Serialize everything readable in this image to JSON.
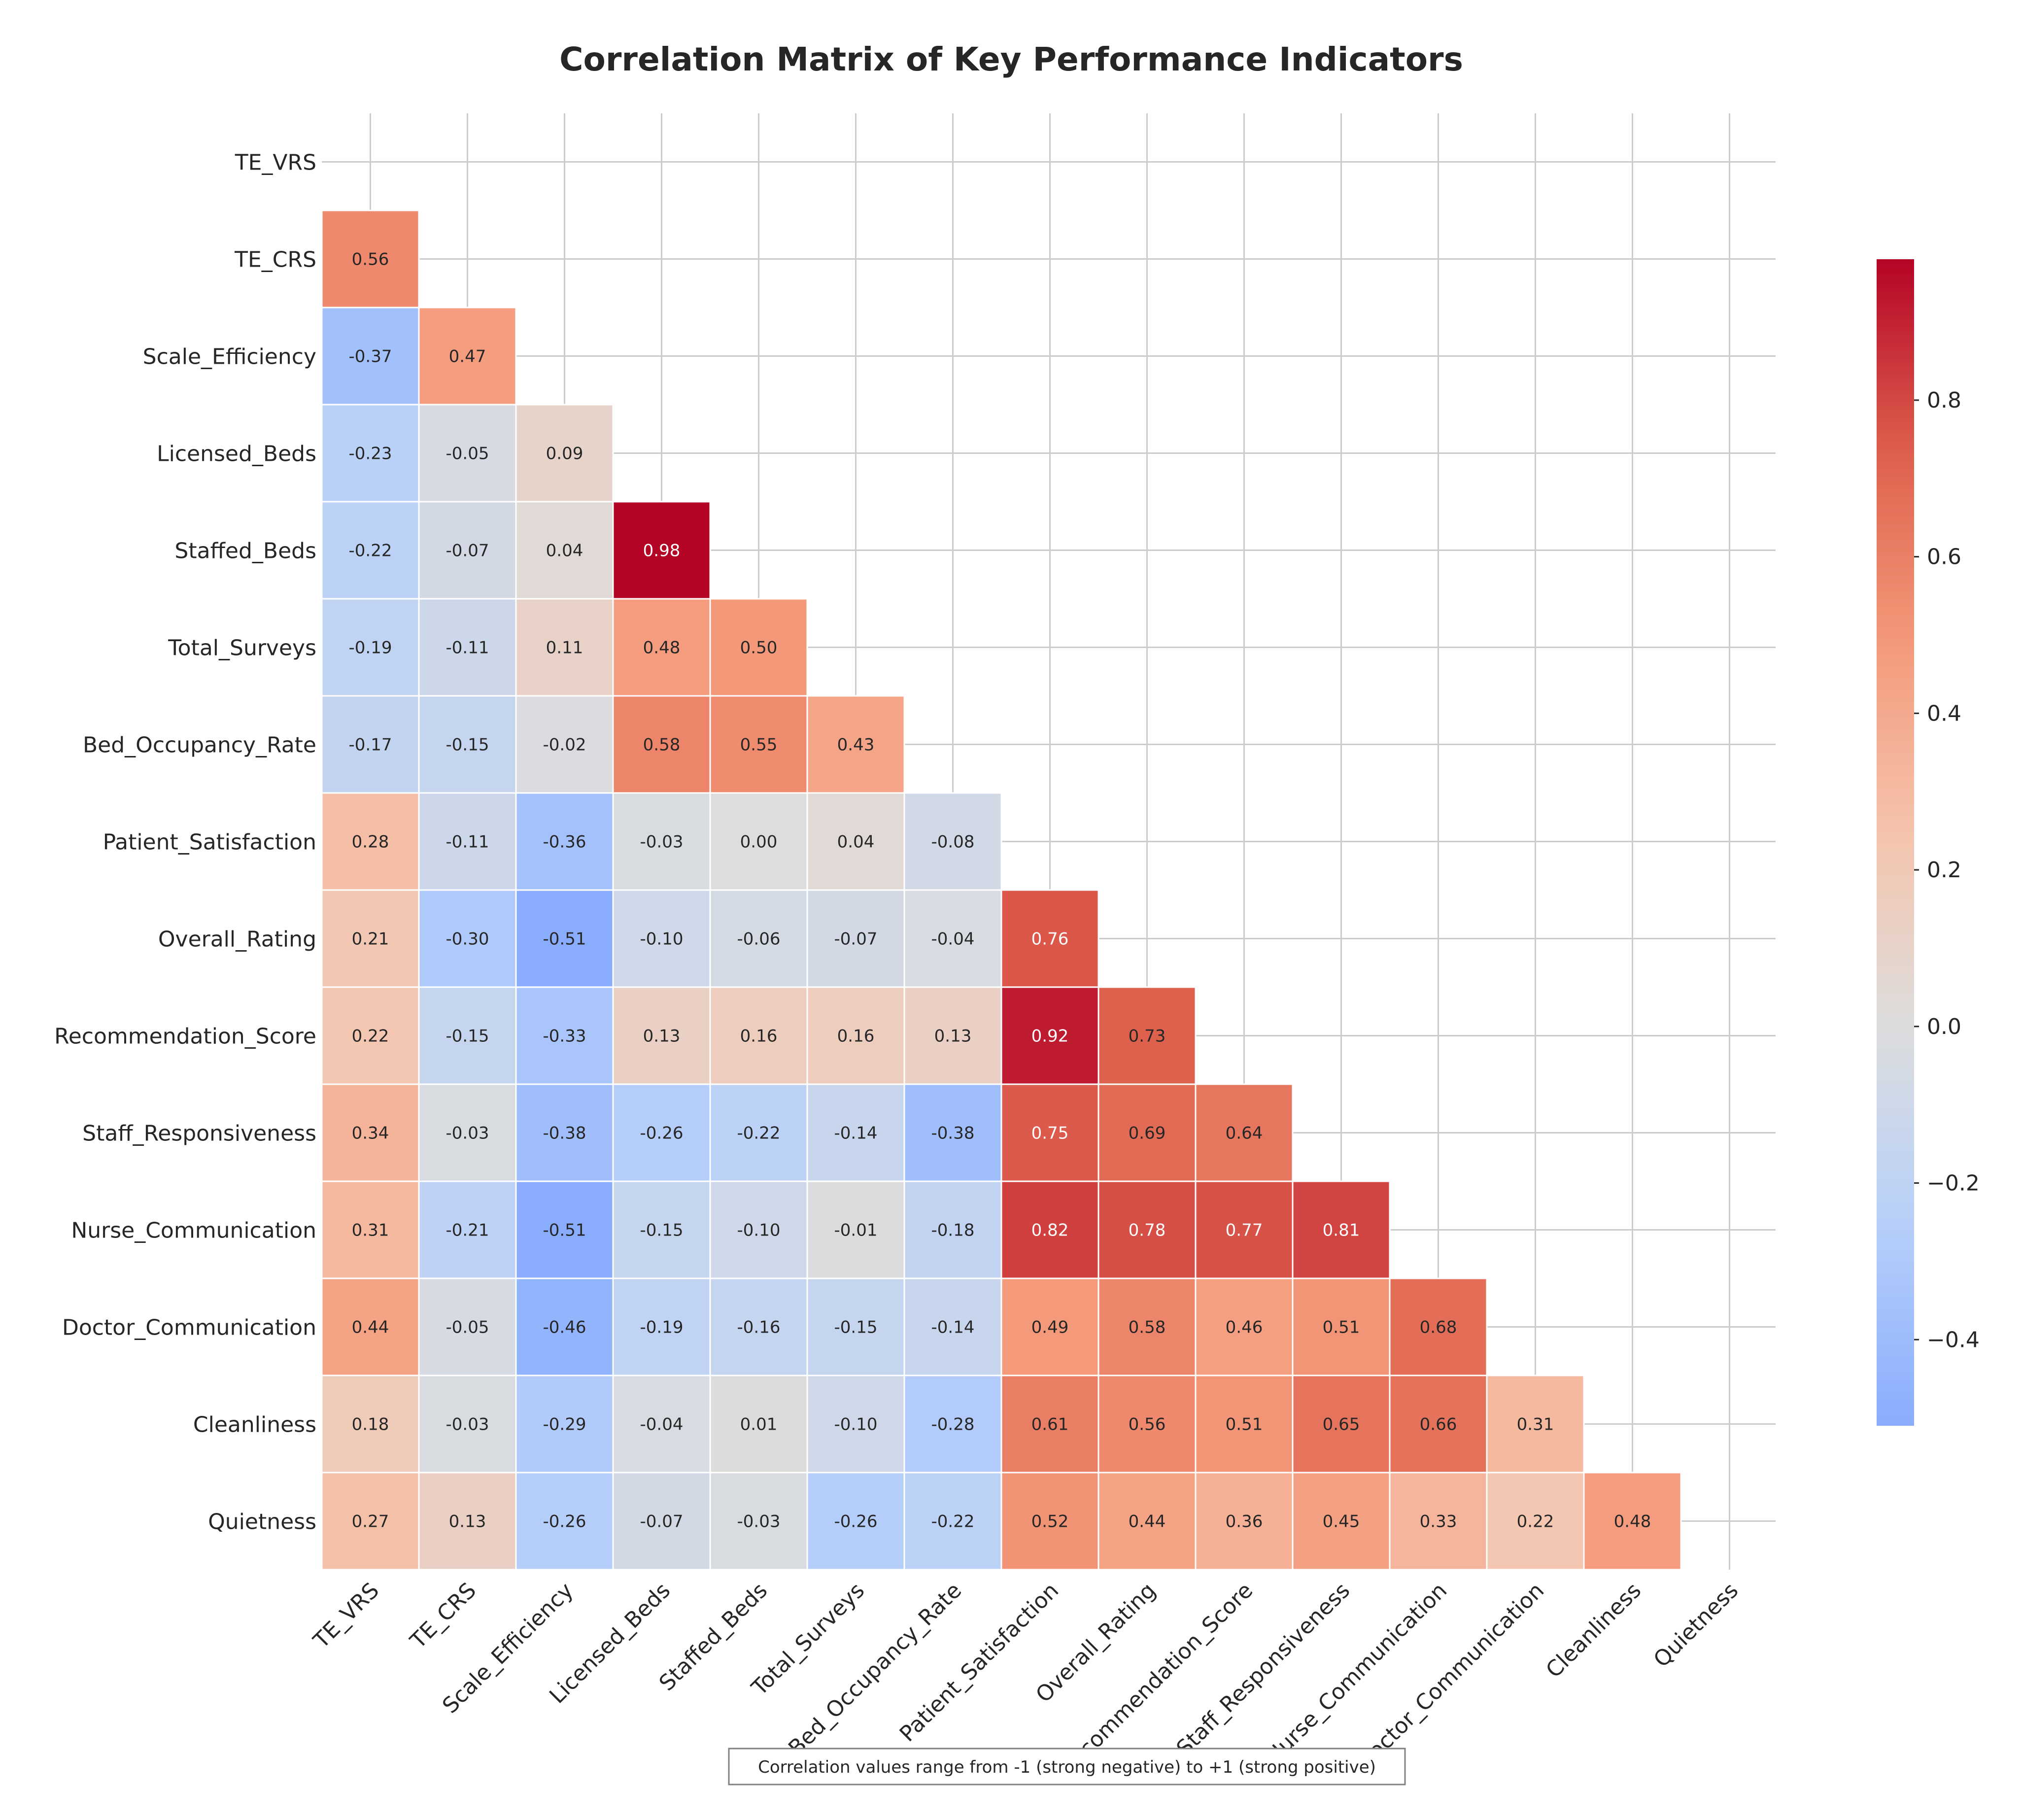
{
  "chart_data": {
    "type": "heatmap",
    "title": "Correlation Matrix of Key Performance Indicators",
    "variables": [
      "TE_VRS",
      "TE_CRS",
      "Scale_Efficiency",
      "Licensed_Beds",
      "Staffed_Beds",
      "Total_Surveys",
      "Bed_Occupancy_Rate",
      "Patient_Satisfaction",
      "Overall_Rating",
      "Recommendation_Score",
      "Staff_Responsiveness",
      "Nurse_Communication",
      "Doctor_Communication",
      "Cleanliness",
      "Quietness"
    ],
    "lower_triangle": [
      [],
      [
        0.56
      ],
      [
        -0.37,
        0.47
      ],
      [
        -0.23,
        -0.05,
        0.09
      ],
      [
        -0.22,
        -0.07,
        0.04,
        0.98
      ],
      [
        -0.19,
        -0.11,
        0.11,
        0.48,
        0.5
      ],
      [
        -0.17,
        -0.15,
        -0.02,
        0.58,
        0.55,
        0.43
      ],
      [
        0.28,
        -0.11,
        -0.36,
        -0.03,
        -0.0,
        0.04,
        -0.08
      ],
      [
        0.21,
        -0.3,
        -0.51,
        -0.1,
        -0.06,
        -0.07,
        -0.04,
        0.76
      ],
      [
        0.22,
        -0.15,
        -0.33,
        0.13,
        0.16,
        0.16,
        0.13,
        0.92,
        0.73
      ],
      [
        0.34,
        -0.03,
        -0.38,
        -0.26,
        -0.22,
        -0.14,
        -0.38,
        0.75,
        0.69,
        0.64
      ],
      [
        0.31,
        -0.21,
        -0.51,
        -0.15,
        -0.1,
        -0.01,
        -0.18,
        0.82,
        0.78,
        0.77,
        0.81
      ],
      [
        0.44,
        -0.05,
        -0.46,
        -0.19,
        -0.16,
        -0.15,
        -0.14,
        0.49,
        0.58,
        0.46,
        0.51,
        0.68
      ],
      [
        0.18,
        -0.03,
        -0.29,
        -0.04,
        0.01,
        -0.1,
        -0.28,
        0.61,
        0.56,
        0.51,
        0.65,
        0.66,
        0.31
      ],
      [
        0.27,
        0.13,
        -0.26,
        -0.07,
        -0.03,
        -0.26,
        -0.22,
        0.52,
        0.44,
        0.36,
        0.45,
        0.33,
        0.22,
        0.48
      ]
    ],
    "value_format": "2 decimals",
    "colormap": "coolwarm",
    "colorbar": {
      "min": -0.51,
      "max": 0.98,
      "ticks": [
        -0.4,
        -0.2,
        0.0,
        0.2,
        0.4,
        0.6,
        0.8
      ],
      "tick_labels": [
        "−0.4",
        "−0.2",
        "0.0",
        "0.2",
        "0.4",
        "0.6",
        "0.8"
      ]
    },
    "grid": true,
    "annotation": "Correlation values range from -1 (strong negative) to +1 (strong positive)"
  }
}
